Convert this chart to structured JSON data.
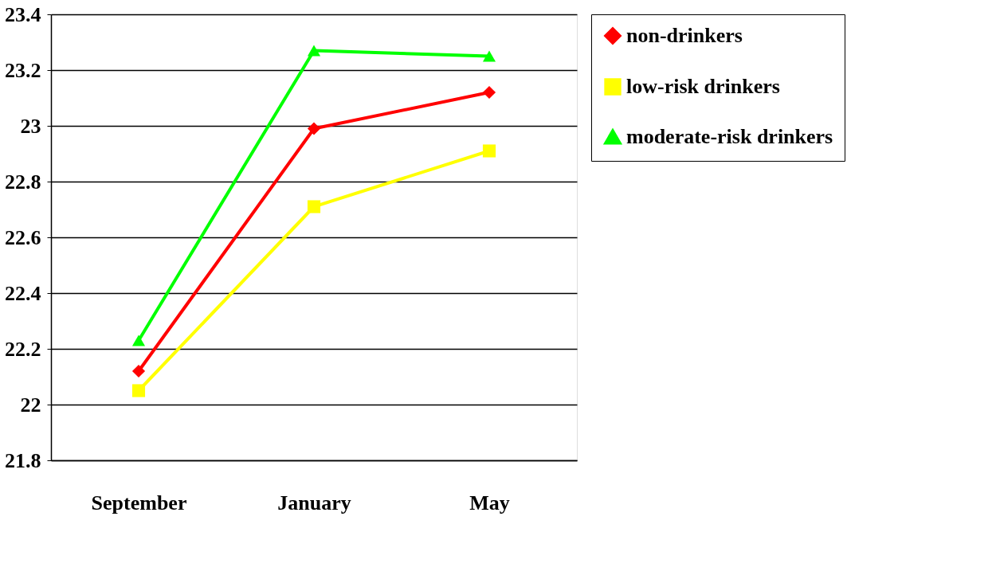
{
  "chart_data": {
    "type": "line",
    "categories": [
      "September",
      "January",
      "May"
    ],
    "series": [
      {
        "name": "non-drinkers",
        "color": "#ff0000",
        "marker": "diamond",
        "values": [
          22.12,
          22.99,
          23.12
        ]
      },
      {
        "name": "low-risk drinkers",
        "color": "#ffff00",
        "marker": "square",
        "values": [
          22.05,
          22.71,
          22.91
        ]
      },
      {
        "name": "moderate-risk drinkers",
        "color": "#00ff00",
        "marker": "triangle",
        "values": [
          22.23,
          23.27,
          23.25
        ]
      }
    ],
    "ylim": [
      21.8,
      23.4
    ],
    "yticks": [
      21.8,
      22,
      22.2,
      22.4,
      22.6,
      22.8,
      23,
      23.2,
      23.4
    ],
    "grid": "y",
    "legend": "right",
    "line_style": "solid"
  }
}
